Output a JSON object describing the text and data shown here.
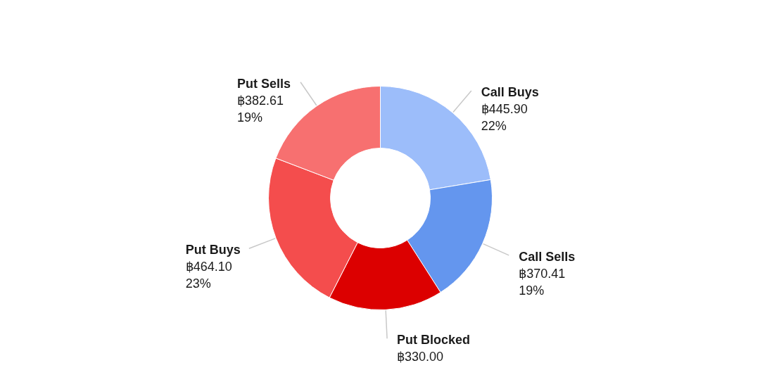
{
  "chart_data": {
    "type": "donut",
    "categories": [
      "Call Buys",
      "Call Sells",
      "Put Blocked",
      "Put Buys",
      "Put Sells"
    ],
    "values": [
      445.9,
      370.41,
      330.0,
      464.1,
      382.61
    ],
    "colors": [
      "#9cbdfa",
      "#6496ee",
      "#dc0000",
      "#f44d4d",
      "#f77070"
    ],
    "value_labels": [
      "฿445.90\n22%",
      "฿370.41\n19%",
      "฿330.00",
      "฿464.10\n23%",
      "฿382.61\n19%"
    ]
  }
}
